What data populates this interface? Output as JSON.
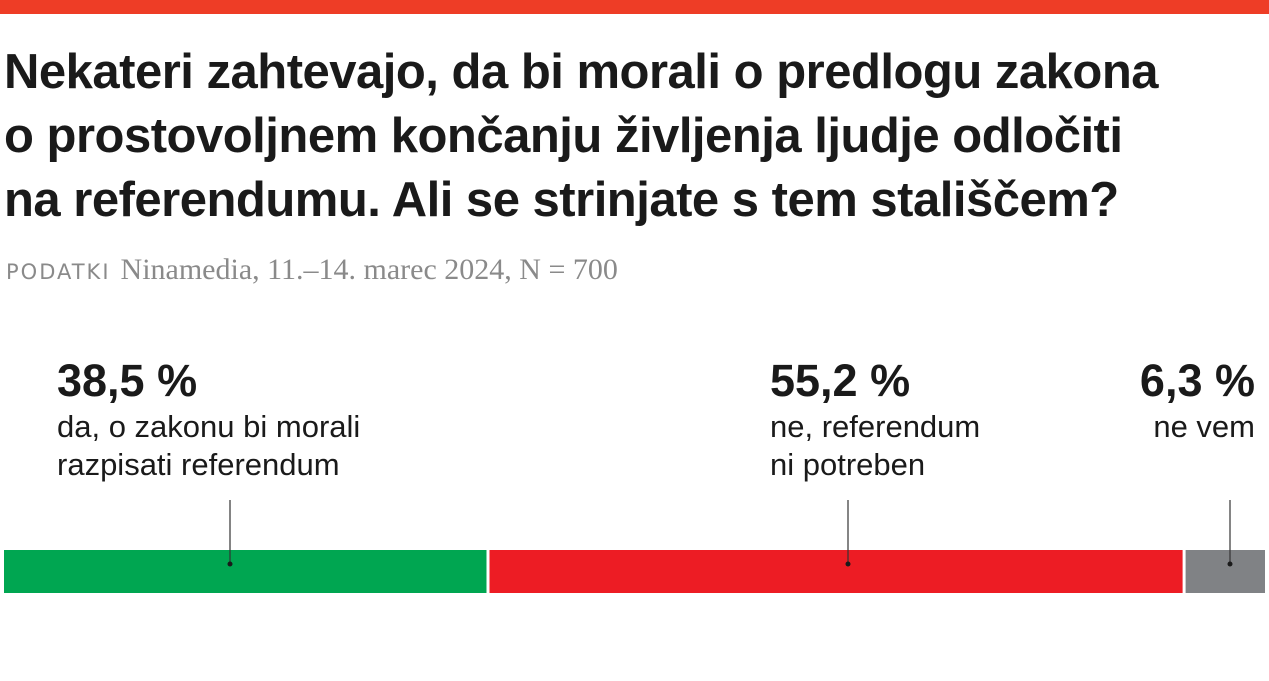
{
  "chart_data": {
    "type": "bar",
    "orientation": "horizontal-stacked",
    "title_lines": [
      "Nekateri zahtevajo, da bi morali o predlogu zakona",
      "o prostovoljnem končanju življenja ljudje odločiti",
      "na referendumu. Ali se strinjate s tem stališčem?"
    ],
    "source_label": "PODATKI",
    "source_text": "Ninamedia, 11.–14. marec 2024, N = 700",
    "xlim": [
      0,
      100
    ],
    "segments": [
      {
        "value": 38.5,
        "value_label": "38,5 %",
        "label_lines": [
          "da, o zakonu bi morali",
          "razpisati referendum"
        ],
        "color": "#00a651"
      },
      {
        "value": 55.2,
        "value_label": "55,2 %",
        "label_lines": [
          "ne, referendum",
          "ni potreben"
        ],
        "color": "#ed1c24"
      },
      {
        "value": 6.3,
        "value_label": "6,3 %",
        "label_lines": [
          "ne vem"
        ],
        "color": "#808285"
      }
    ]
  },
  "colors": {
    "accent_rule": "#ee3d26"
  }
}
